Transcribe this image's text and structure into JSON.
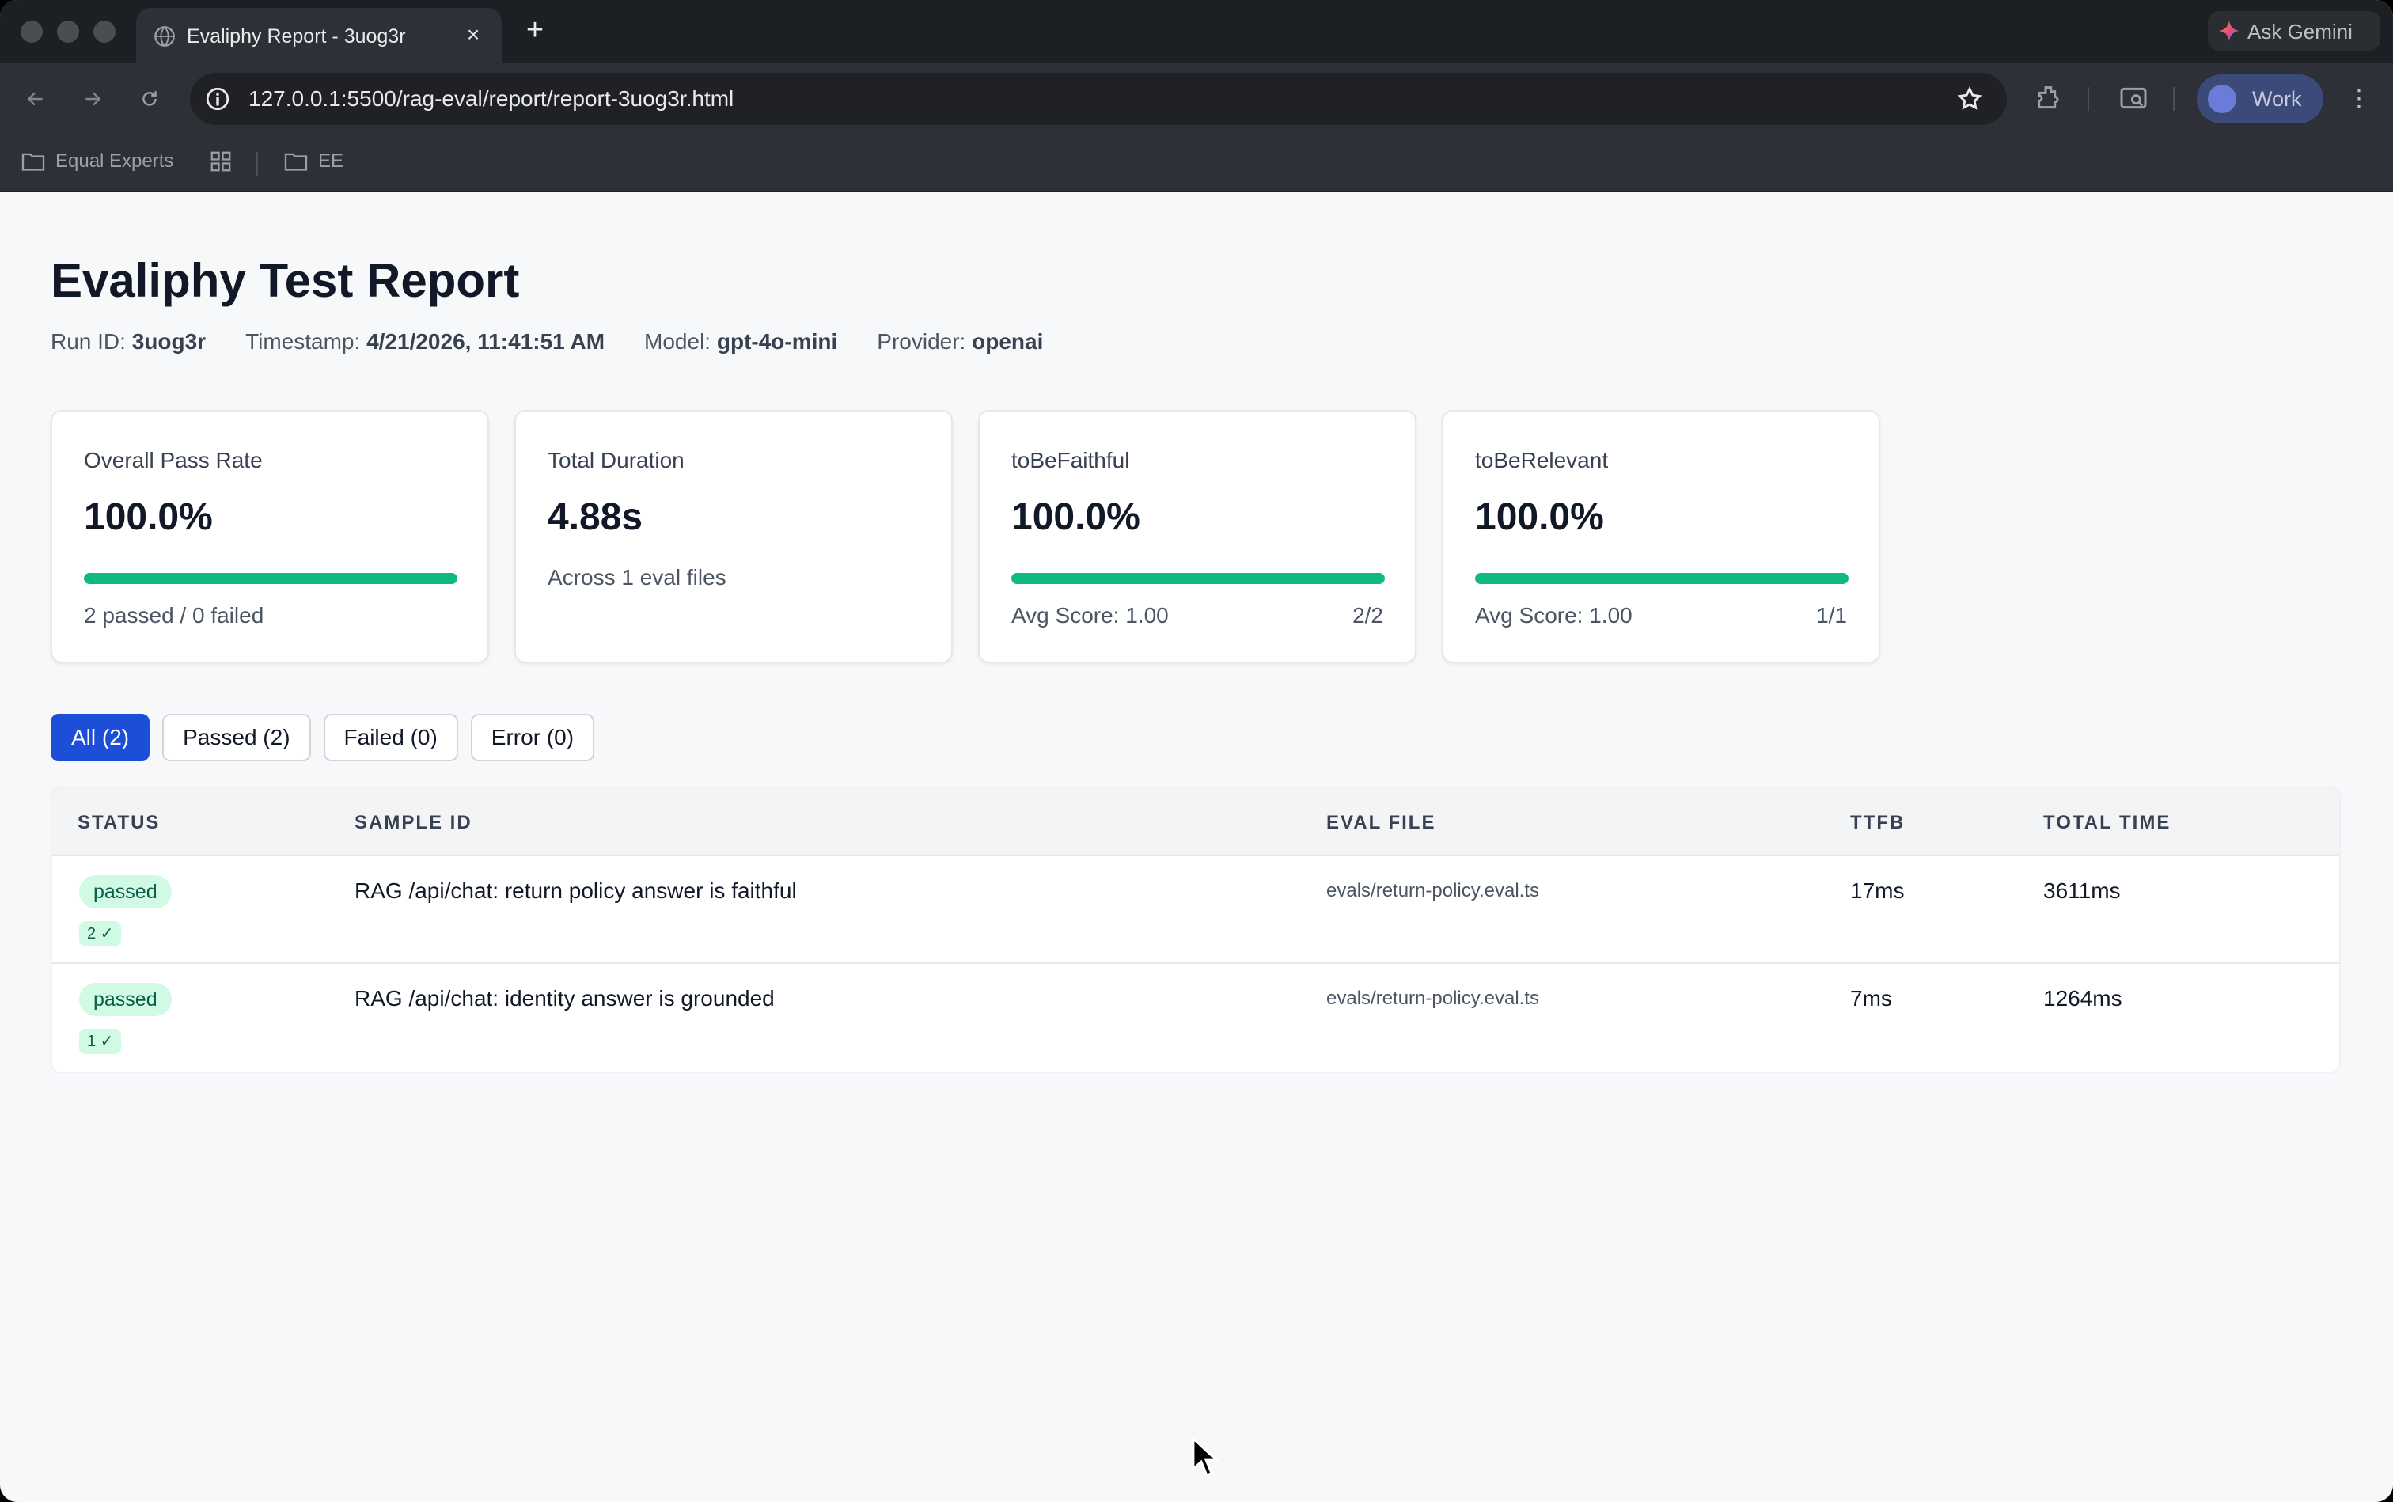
{
  "browser": {
    "tab_title": "Evaliphy Report - 3uog3r",
    "new_tab_label": "+",
    "ask_gemini_label": "Ask Gemini",
    "url": "127.0.0.1:5500/rag-eval/report/report-3uog3r.html",
    "profile_label": "Work",
    "bookmarks": [
      {
        "label": "Equal Experts",
        "icon": "folder-icon"
      },
      {
        "label": "",
        "icon": "apps-grid-icon"
      },
      {
        "label": "EE",
        "icon": "folder-icon"
      }
    ]
  },
  "report": {
    "title": "Evaliphy Test Report",
    "meta": {
      "run_id_label": "Run ID:",
      "run_id": "3uog3r",
      "timestamp_label": "Timestamp:",
      "timestamp": "4/21/2026, 11:41:51 AM",
      "model_label": "Model:",
      "model": "gpt-4o-mini",
      "provider_label": "Provider:",
      "provider": "openai"
    },
    "cards": [
      {
        "title": "Overall Pass Rate",
        "value": "100.0%",
        "progress": 1.0,
        "footer": "2 passed / 0 failed",
        "footer_right": ""
      },
      {
        "title": "Total Duration",
        "value": "4.88s",
        "subtitle": "Across 1 eval files"
      },
      {
        "title": "toBeFaithful",
        "value": "100.0%",
        "progress": 1.0,
        "footer": "Avg Score: 1.00",
        "footer_right": "2/2"
      },
      {
        "title": "toBeRelevant",
        "value": "100.0%",
        "progress": 1.0,
        "footer": "Avg Score: 1.00",
        "footer_right": "1/1"
      }
    ],
    "filters": [
      {
        "label": "All (2)",
        "active": true
      },
      {
        "label": "Passed (2)",
        "active": false
      },
      {
        "label": "Failed (0)",
        "active": false
      },
      {
        "label": "Error (0)",
        "active": false
      }
    ],
    "table": {
      "headers": [
        "STATUS",
        "SAMPLE ID",
        "EVAL FILE",
        "TTFB",
        "TOTAL TIME"
      ],
      "rows": [
        {
          "status": "passed",
          "assertions": "2 ✓",
          "sample_id": "RAG /api/chat: return policy answer is faithful",
          "eval_file": "evals/return-policy.eval.ts",
          "ttfb": "17ms",
          "total_time": "3611ms"
        },
        {
          "status": "passed",
          "assertions": "1 ✓",
          "sample_id": "RAG /api/chat: identity answer is grounded",
          "eval_file": "evals/return-policy.eval.ts",
          "ttfb": "7ms",
          "total_time": "1264ms"
        }
      ]
    }
  },
  "colors": {
    "accent": "#1d4ed8",
    "success": "#10b981",
    "badge_bg": "#d1fae5",
    "badge_text": "#065f46"
  }
}
